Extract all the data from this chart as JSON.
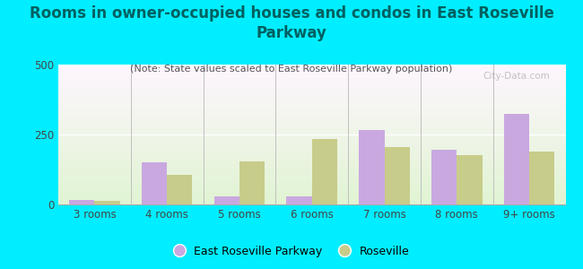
{
  "title": "Rooms in owner-occupied houses and condos in East Roseville\nParkway",
  "subtitle": "(Note: State values scaled to East Roseville Parkway population)",
  "categories": [
    "3 rooms",
    "4 rooms",
    "5 rooms",
    "6 rooms",
    "7 rooms",
    "8 rooms",
    "9+ rooms"
  ],
  "erp_values": [
    15,
    150,
    30,
    30,
    265,
    195,
    325
  ],
  "roseville_values": [
    12,
    105,
    155,
    235,
    205,
    175,
    190
  ],
  "erp_color": "#c9a8e0",
  "roseville_color": "#c8cc8a",
  "background_outer": "#00eeff",
  "ylim": [
    0,
    500
  ],
  "yticks": [
    0,
    250,
    500
  ],
  "bar_width": 0.35,
  "legend_erp": "East Roseville Parkway",
  "legend_roseville": "Roseville",
  "title_fontsize": 12,
  "subtitle_fontsize": 8,
  "axis_label_fontsize": 8.5,
  "title_color": "#006060",
  "subtitle_color": "#555555",
  "tick_color": "#444444",
  "watermark": "City-Data.com"
}
